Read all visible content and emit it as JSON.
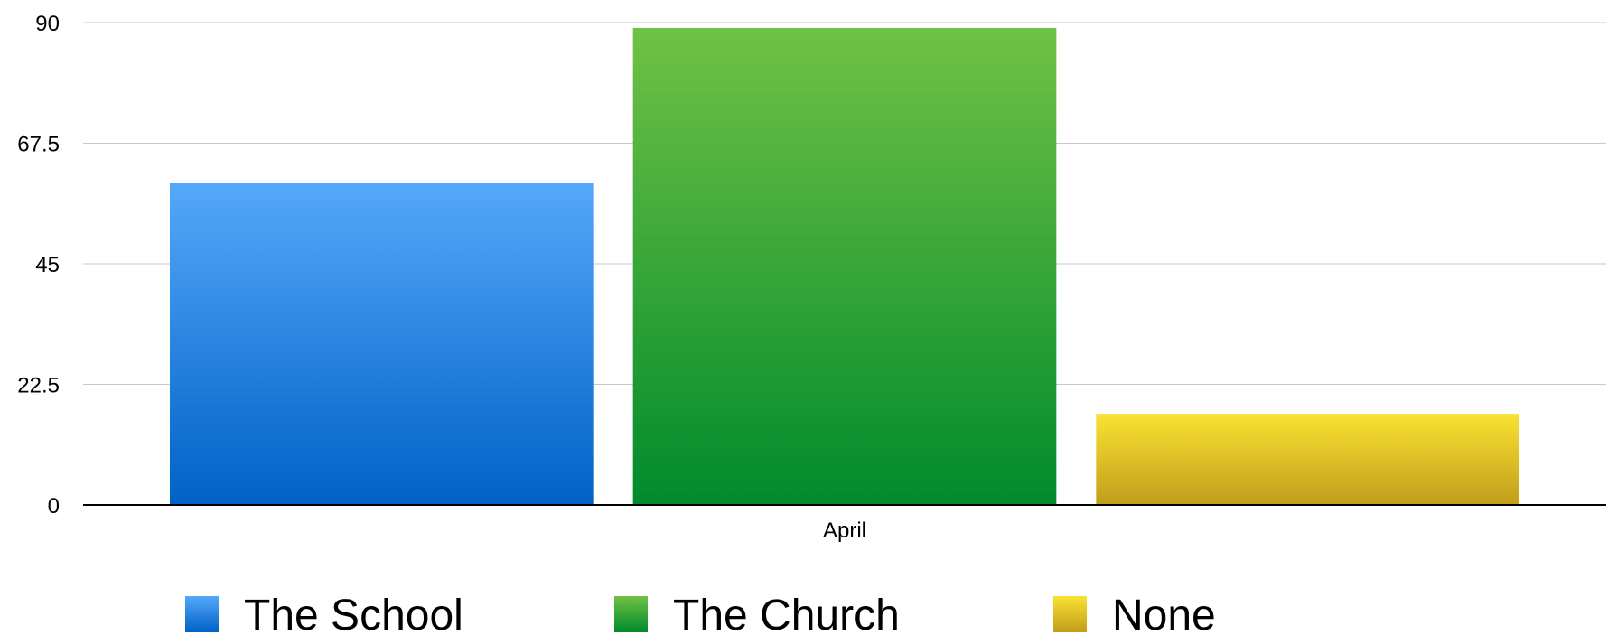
{
  "chart_data": {
    "type": "bar",
    "title": "",
    "xlabel": "",
    "ylabel": "",
    "categories": [
      "April"
    ],
    "series": [
      {
        "name": "The School",
        "values": [
          60
        ],
        "color_top": "#55a8fa",
        "color_bottom": "#0061c6"
      },
      {
        "name": "The Church",
        "values": [
          89
        ],
        "color_top": "#70c245",
        "color_bottom": "#008a2c"
      },
      {
        "name": "None",
        "values": [
          17
        ],
        "color_top": "#fae233",
        "color_bottom": "#c29d1b"
      }
    ],
    "ylim": [
      0,
      90
    ],
    "yticks": [
      "0",
      "22.5",
      "45",
      "67.5",
      "90"
    ],
    "grid": true,
    "legend_position": "bottom"
  }
}
